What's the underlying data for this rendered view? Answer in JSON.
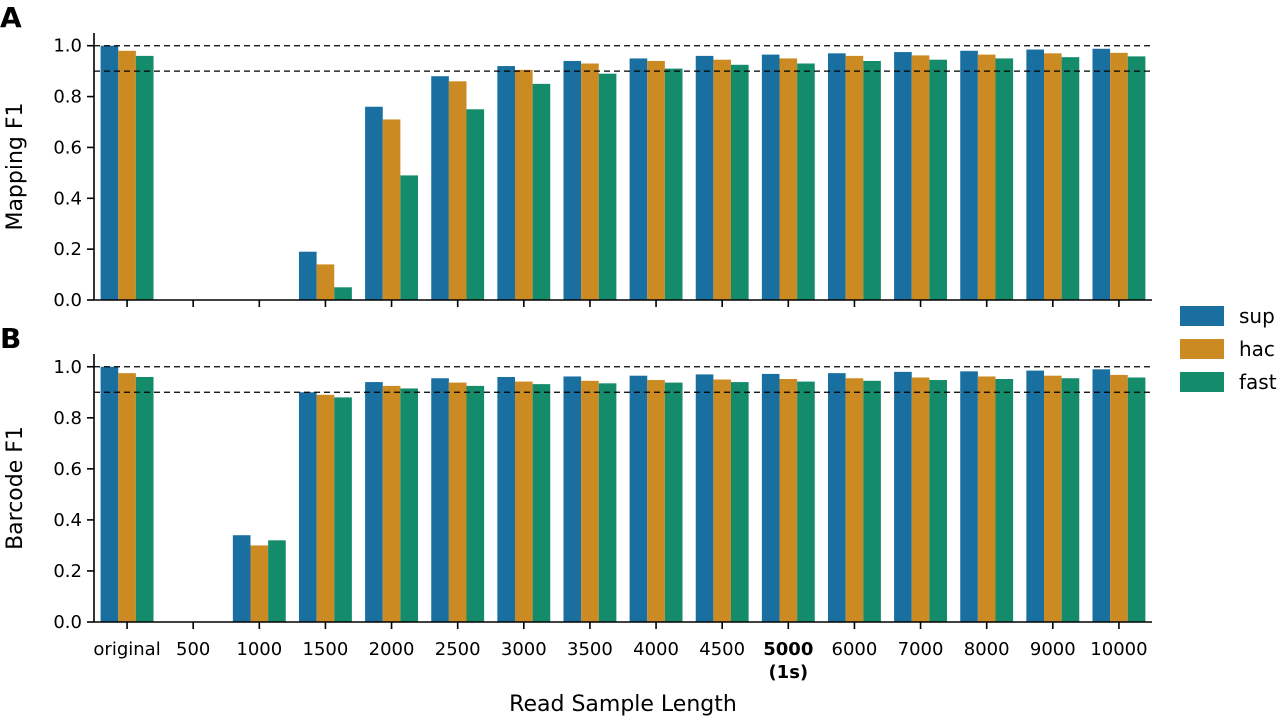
{
  "chart_data": [
    {
      "panel_label": "A",
      "type": "bar",
      "ylabel": "Mapping F1",
      "ylim": [
        0.0,
        1.05
      ],
      "yticks": [
        "0.0",
        "0.2",
        "0.4",
        "0.6",
        "0.8",
        "1.0"
      ],
      "reference_lines": [
        1.0,
        0.9
      ],
      "categories": [
        "original",
        "500",
        "1000",
        "1500",
        "2000",
        "2500",
        "3000",
        "3500",
        "4000",
        "4500",
        "5000",
        "6000",
        "7000",
        "8000",
        "9000",
        "10000"
      ],
      "series": [
        {
          "name": "sup",
          "values": [
            1.0,
            0,
            0,
            0.19,
            0.76,
            0.88,
            0.92,
            0.94,
            0.95,
            0.96,
            0.965,
            0.97,
            0.975,
            0.98,
            0.985,
            0.988
          ]
        },
        {
          "name": "hac",
          "values": [
            0.98,
            0,
            0,
            0.14,
            0.71,
            0.86,
            0.905,
            0.93,
            0.94,
            0.945,
            0.95,
            0.96,
            0.962,
            0.965,
            0.97,
            0.972
          ]
        },
        {
          "name": "fast",
          "values": [
            0.96,
            0,
            0,
            0.05,
            0.49,
            0.75,
            0.85,
            0.89,
            0.91,
            0.925,
            0.93,
            0.94,
            0.945,
            0.95,
            0.955,
            0.958
          ]
        }
      ],
      "grid": false
    },
    {
      "panel_label": "B",
      "type": "bar",
      "ylabel": "Barcode F1",
      "xlabel": "Read Sample Length",
      "ylim": [
        0.0,
        1.05
      ],
      "yticks": [
        "0.0",
        "0.2",
        "0.4",
        "0.6",
        "0.8",
        "1.0"
      ],
      "reference_lines": [
        1.0,
        0.9
      ],
      "categories": [
        "original",
        "500",
        "1000",
        "1500",
        "2000",
        "2500",
        "3000",
        "3500",
        "4000",
        "4500",
        "5000",
        "6000",
        "7000",
        "8000",
        "9000",
        "10000"
      ],
      "category_sublabels": {
        "5000": "(1s)"
      },
      "bold_categories": [
        "5000"
      ],
      "series": [
        {
          "name": "sup",
          "values": [
            1.0,
            0,
            0.34,
            0.9,
            0.94,
            0.955,
            0.96,
            0.962,
            0.965,
            0.97,
            0.972,
            0.975,
            0.98,
            0.982,
            0.985,
            0.99
          ]
        },
        {
          "name": "hac",
          "values": [
            0.975,
            0,
            0.3,
            0.89,
            0.925,
            0.938,
            0.942,
            0.945,
            0.948,
            0.95,
            0.952,
            0.955,
            0.958,
            0.962,
            0.965,
            0.968
          ]
        },
        {
          "name": "fast",
          "values": [
            0.96,
            0,
            0.32,
            0.88,
            0.915,
            0.925,
            0.932,
            0.935,
            0.938,
            0.94,
            0.942,
            0.945,
            0.948,
            0.952,
            0.955,
            0.958
          ]
        }
      ],
      "grid": false
    }
  ],
  "legend": {
    "placement": "right",
    "entries": [
      {
        "label": "sup",
        "color": "#1a6fa1"
      },
      {
        "label": "hac",
        "color": "#cc8a22"
      },
      {
        "label": "fast",
        "color": "#148c6c"
      }
    ]
  }
}
